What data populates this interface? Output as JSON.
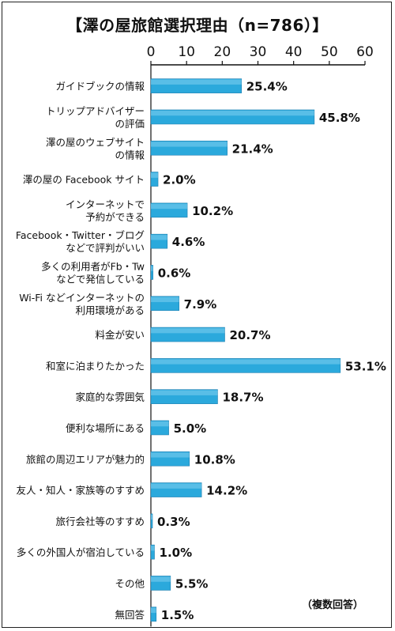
{
  "chart_data": {
    "type": "bar",
    "orientation": "horizontal",
    "title": "【澤の屋旅館選択理由（n=786）】",
    "note": "（複数回答）",
    "xlim": [
      0,
      60
    ],
    "xticks": [
      "0",
      "10",
      "20",
      "30",
      "40",
      "50",
      "60"
    ],
    "value_suffix": "%",
    "bar_color": "#2ba9dc",
    "grid": false,
    "categories": [
      [
        "ガイドブックの情報"
      ],
      [
        "トリップアドバイザー",
        "の評価"
      ],
      [
        "澤の屋のウェブサイト",
        "の情報"
      ],
      [
        "澤の屋の Facebook サイト"
      ],
      [
        "インターネットで",
        "予約ができる"
      ],
      [
        "Facebook・Twitter・ブログ",
        "などで評判がいい"
      ],
      [
        "多くの利用者がFb・Tw",
        "などで発信している"
      ],
      [
        "Wi-Fi などインターネットの",
        "利用環境がある"
      ],
      [
        "料金が安い"
      ],
      [
        "和室に泊まりたかった"
      ],
      [
        "家庭的な雰囲気"
      ],
      [
        "便利な場所にある"
      ],
      [
        "旅館の周辺エリアが魅力的"
      ],
      [
        "友人・知人・家族等のすすめ"
      ],
      [
        "旅行会社等のすすめ"
      ],
      [
        "多くの外国人が宿泊している"
      ],
      [
        "その他"
      ],
      [
        "無回答"
      ]
    ],
    "values": [
      25.4,
      45.8,
      21.4,
      2.0,
      10.2,
      4.6,
      0.6,
      7.9,
      20.7,
      53.1,
      18.7,
      5.0,
      10.8,
      14.2,
      0.3,
      1.0,
      5.5,
      1.5
    ]
  }
}
